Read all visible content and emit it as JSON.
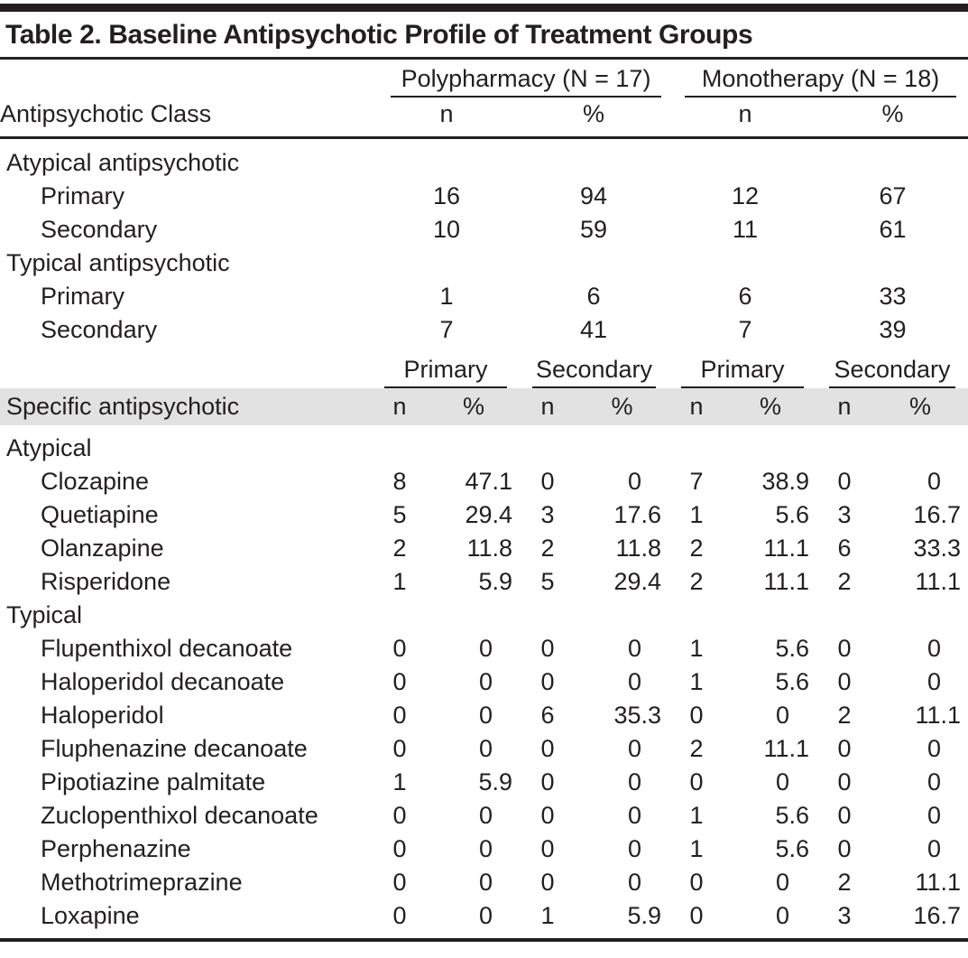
{
  "title": "Table 2. Baseline Antipsychotic Profile of Treatment Groups",
  "colors": {
    "text": "#231f20",
    "rule": "#231f20",
    "header_band": "#e2e2e2"
  },
  "class_table": {
    "row_header": "Antipsychotic Class",
    "group_headers": [
      "Polypharmacy (N = 17)",
      "Monotherapy (N = 18)"
    ],
    "subheaders": [
      "n",
      "%",
      "n",
      "%"
    ],
    "rows": [
      {
        "label": "Atypical antipsychotic",
        "indent": false,
        "values": [
          "",
          "",
          "",
          ""
        ]
      },
      {
        "label": "Primary",
        "indent": true,
        "values": [
          "16",
          "94",
          "12",
          "67"
        ]
      },
      {
        "label": "Secondary",
        "indent": true,
        "values": [
          "10",
          "59",
          "11",
          "61"
        ]
      },
      {
        "label": "Typical antipsychotic",
        "indent": false,
        "values": [
          "",
          "",
          "",
          ""
        ]
      },
      {
        "label": "Primary",
        "indent": true,
        "values": [
          "1",
          "6",
          "6",
          "33"
        ]
      },
      {
        "label": "Secondary",
        "indent": true,
        "values": [
          "7",
          "41",
          "7",
          "39"
        ]
      }
    ]
  },
  "specific_table": {
    "row_header": "Specific antipsychotic",
    "group_headers": [
      "Primary",
      "Secondary",
      "Primary",
      "Secondary"
    ],
    "subheaders": [
      "n",
      "%",
      "n",
      "%",
      "n",
      "%",
      "n",
      "%"
    ],
    "rows": [
      {
        "label": "Atypical",
        "indent": false,
        "values": [
          "",
          "",
          "",
          "",
          "",
          "",
          "",
          ""
        ]
      },
      {
        "label": "Clozapine",
        "indent": true,
        "values": [
          "8",
          "47.1",
          "0",
          "0",
          "7",
          "38.9",
          "0",
          "0"
        ]
      },
      {
        "label": "Quetiapine",
        "indent": true,
        "values": [
          "5",
          "29.4",
          "3",
          "17.6",
          "1",
          "5.6",
          "3",
          "16.7"
        ]
      },
      {
        "label": "Olanzapine",
        "indent": true,
        "values": [
          "2",
          "11.8",
          "2",
          "11.8",
          "2",
          "11.1",
          "6",
          "33.3"
        ]
      },
      {
        "label": "Risperidone",
        "indent": true,
        "values": [
          "1",
          "5.9",
          "5",
          "29.4",
          "2",
          "11.1",
          "2",
          "11.1"
        ]
      },
      {
        "label": "Typical",
        "indent": false,
        "values": [
          "",
          "",
          "",
          "",
          "",
          "",
          "",
          ""
        ]
      },
      {
        "label": "Flupenthixol decanoate",
        "indent": true,
        "values": [
          "0",
          "0",
          "0",
          "0",
          "1",
          "5.6",
          "0",
          "0"
        ]
      },
      {
        "label": "Haloperidol decanoate",
        "indent": true,
        "values": [
          "0",
          "0",
          "0",
          "0",
          "1",
          "5.6",
          "0",
          "0"
        ]
      },
      {
        "label": "Haloperidol",
        "indent": true,
        "values": [
          "0",
          "0",
          "6",
          "35.3",
          "0",
          "0",
          "2",
          "11.1"
        ]
      },
      {
        "label": "Fluphenazine decanoate",
        "indent": true,
        "values": [
          "0",
          "0",
          "0",
          "0",
          "2",
          "11.1",
          "0",
          "0"
        ]
      },
      {
        "label": "Pipotiazine palmitate",
        "indent": true,
        "values": [
          "1",
          "5.9",
          "0",
          "0",
          "0",
          "0",
          "0",
          "0"
        ]
      },
      {
        "label": "Zuclopenthixol decanoate",
        "indent": true,
        "values": [
          "0",
          "0",
          "0",
          "0",
          "1",
          "5.6",
          "0",
          "0"
        ]
      },
      {
        "label": "Perphenazine",
        "indent": true,
        "values": [
          "0",
          "0",
          "0",
          "0",
          "1",
          "5.6",
          "0",
          "0"
        ]
      },
      {
        "label": "Methotrimeprazine",
        "indent": true,
        "values": [
          "0",
          "0",
          "0",
          "0",
          "0",
          "0",
          "2",
          "11.1"
        ]
      },
      {
        "label": "Loxapine",
        "indent": true,
        "values": [
          "0",
          "0",
          "1",
          "5.9",
          "0",
          "0",
          "3",
          "16.7"
        ]
      }
    ]
  }
}
